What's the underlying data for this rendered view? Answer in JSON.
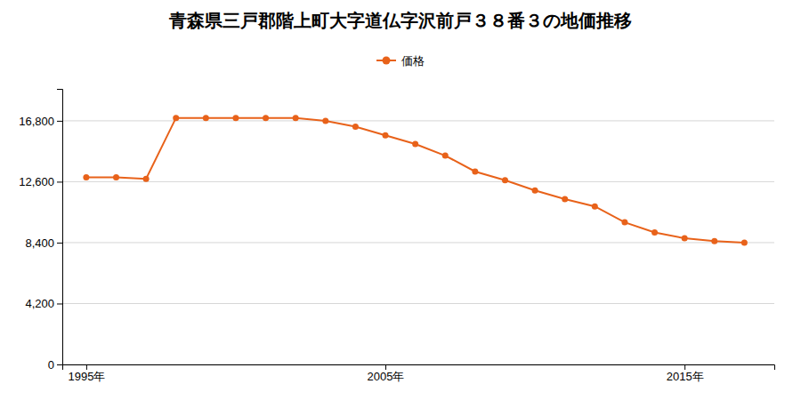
{
  "chart_data": {
    "type": "line",
    "title": "青森県三戸郡階上町大字道仏字沢前戸３８番３の地価推移",
    "x": [
      1995,
      1996,
      1997,
      1998,
      1999,
      2000,
      2001,
      2002,
      2003,
      2004,
      2005,
      2006,
      2007,
      2008,
      2009,
      2010,
      2011,
      2012,
      2013,
      2014,
      2015,
      2016,
      2017
    ],
    "series": [
      {
        "name": "価格",
        "color": "#E8621A",
        "marker": "circle",
        "values": [
          12900,
          12900,
          12800,
          17000,
          17000,
          17000,
          17000,
          17000,
          16800,
          16400,
          15800,
          15200,
          14400,
          13300,
          12700,
          12000,
          11400,
          10900,
          9800,
          9100,
          8700,
          8500,
          8400
        ]
      }
    ],
    "xlim": [
      1994.2,
      2018.0
    ],
    "xticks": [
      {
        "value": 1995,
        "label": "1995年"
      },
      {
        "value": 2005,
        "label": "2005年"
      },
      {
        "value": 2015,
        "label": "2015年"
      }
    ],
    "ylim": [
      0,
      19000
    ],
    "yticks": [
      0,
      {
        "value": 4200,
        "label": "4,200"
      },
      {
        "value": 8400,
        "label": "8,400"
      },
      {
        "value": 12600,
        "label": "12,600"
      },
      {
        "value": 16800,
        "label": "16,800"
      }
    ],
    "grid": true,
    "legend": "top"
  }
}
